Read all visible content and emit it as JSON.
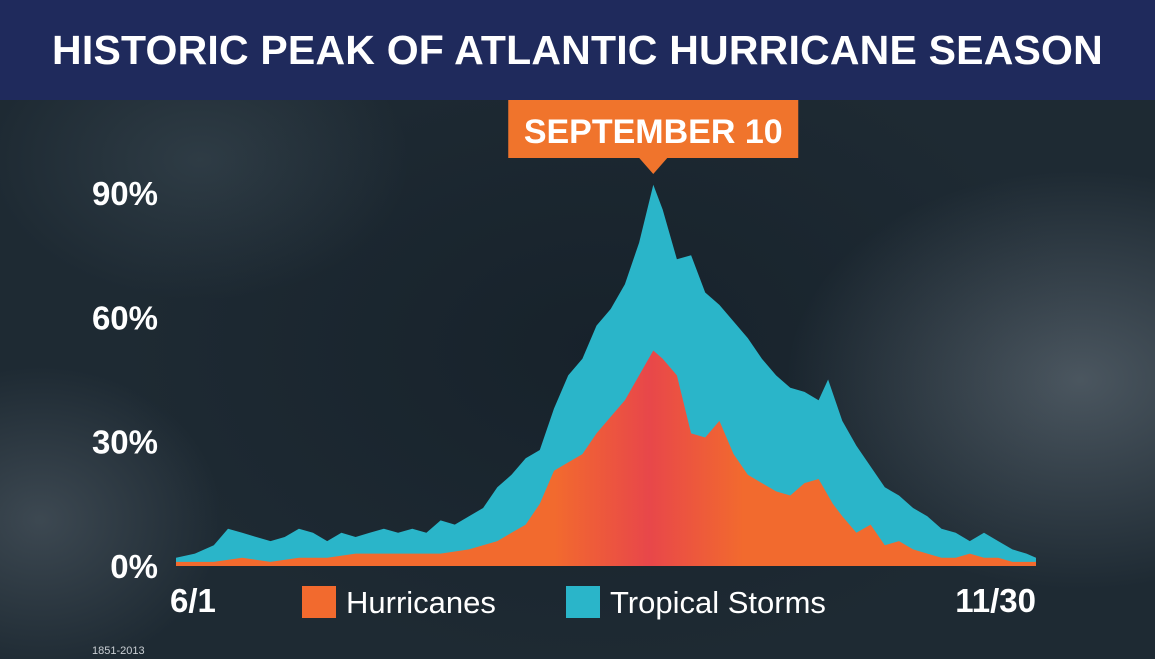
{
  "title": "HISTORIC PEAK OF ATLANTIC HURRICANE SEASON",
  "footnote": "1851-2013",
  "colors": {
    "title_bar": "#1f2a5c",
    "hurricanes": "#f26a2e",
    "hurricanes_peak": "#e8474a",
    "tropical_storms": "#2ab5c9",
    "callout": "#f0742c"
  },
  "chart_data": {
    "type": "area",
    "stacked": false,
    "title": "HISTORIC PEAK OF ATLANTIC HURRICANE SEASON",
    "annotation": "SEPTEMBER 10",
    "annotation_x": 102,
    "x_tick_labels": [
      "6/1",
      "11/30"
    ],
    "x_range": [
      1,
      183
    ],
    "y_tick_labels": [
      "0%",
      "30%",
      "60%",
      "90%"
    ],
    "y_ticks": [
      0,
      30,
      60,
      90
    ],
    "ylim": [
      0,
      95
    ],
    "grid": false,
    "legend_position": "bottom-center",
    "series": [
      {
        "name": "Tropical Storms",
        "color": "#2ab5c9",
        "points": [
          [
            1,
            2
          ],
          [
            5,
            3
          ],
          [
            9,
            5
          ],
          [
            12,
            9
          ],
          [
            15,
            8
          ],
          [
            18,
            7
          ],
          [
            21,
            6
          ],
          [
            24,
            7
          ],
          [
            27,
            9
          ],
          [
            30,
            8
          ],
          [
            33,
            6
          ],
          [
            36,
            8
          ],
          [
            39,
            7
          ],
          [
            42,
            8
          ],
          [
            45,
            9
          ],
          [
            48,
            8
          ],
          [
            51,
            9
          ],
          [
            54,
            8
          ],
          [
            57,
            11
          ],
          [
            60,
            10
          ],
          [
            63,
            12
          ],
          [
            66,
            14
          ],
          [
            69,
            19
          ],
          [
            72,
            22
          ],
          [
            75,
            26
          ],
          [
            78,
            28
          ],
          [
            81,
            38
          ],
          [
            84,
            46
          ],
          [
            87,
            50
          ],
          [
            90,
            58
          ],
          [
            93,
            62
          ],
          [
            96,
            68
          ],
          [
            99,
            78
          ],
          [
            102,
            92
          ],
          [
            104,
            86
          ],
          [
            107,
            74
          ],
          [
            110,
            75
          ],
          [
            113,
            66
          ],
          [
            116,
            63
          ],
          [
            119,
            59
          ],
          [
            122,
            55
          ],
          [
            125,
            50
          ],
          [
            128,
            46
          ],
          [
            131,
            43
          ],
          [
            134,
            42
          ],
          [
            137,
            40
          ],
          [
            139,
            45
          ],
          [
            142,
            35
          ],
          [
            145,
            29
          ],
          [
            148,
            24
          ],
          [
            151,
            19
          ],
          [
            154,
            17
          ],
          [
            157,
            14
          ],
          [
            160,
            12
          ],
          [
            163,
            9
          ],
          [
            166,
            8
          ],
          [
            169,
            6
          ],
          [
            172,
            8
          ],
          [
            175,
            6
          ],
          [
            178,
            4
          ],
          [
            181,
            3
          ],
          [
            183,
            2
          ]
        ]
      },
      {
        "name": "Hurricanes",
        "color": "#f26a2e",
        "points": [
          [
            1,
            1
          ],
          [
            9,
            1
          ],
          [
            15,
            2
          ],
          [
            21,
            1
          ],
          [
            27,
            2
          ],
          [
            33,
            2
          ],
          [
            39,
            3
          ],
          [
            45,
            3
          ],
          [
            51,
            3
          ],
          [
            57,
            3
          ],
          [
            63,
            4
          ],
          [
            69,
            6
          ],
          [
            72,
            8
          ],
          [
            75,
            10
          ],
          [
            78,
            15
          ],
          [
            81,
            23
          ],
          [
            84,
            25
          ],
          [
            87,
            27
          ],
          [
            90,
            32
          ],
          [
            93,
            36
          ],
          [
            96,
            40
          ],
          [
            99,
            46
          ],
          [
            102,
            52
          ],
          [
            104,
            50
          ],
          [
            107,
            46
          ],
          [
            110,
            32
          ],
          [
            113,
            31
          ],
          [
            116,
            35
          ],
          [
            119,
            27
          ],
          [
            122,
            22
          ],
          [
            125,
            20
          ],
          [
            128,
            18
          ],
          [
            131,
            17
          ],
          [
            134,
            20
          ],
          [
            137,
            21
          ],
          [
            140,
            15
          ],
          [
            142,
            12
          ],
          [
            145,
            8
          ],
          [
            148,
            10
          ],
          [
            151,
            5
          ],
          [
            154,
            6
          ],
          [
            157,
            4
          ],
          [
            160,
            3
          ],
          [
            163,
            2
          ],
          [
            166,
            2
          ],
          [
            169,
            3
          ],
          [
            172,
            2
          ],
          [
            175,
            2
          ],
          [
            178,
            1
          ],
          [
            183,
            1
          ]
        ]
      }
    ]
  }
}
